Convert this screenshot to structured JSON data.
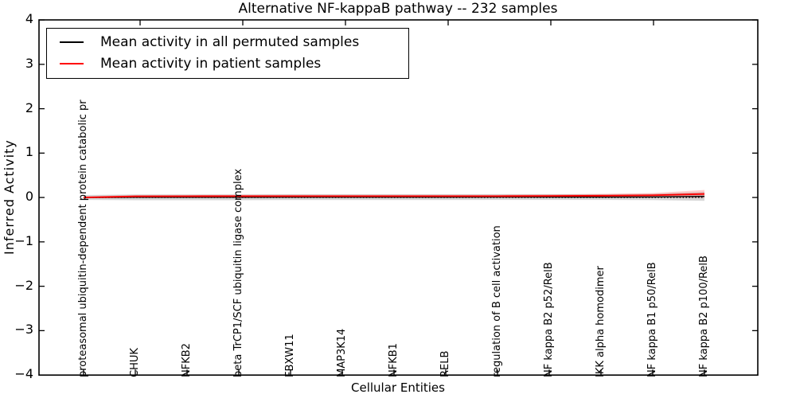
{
  "title": "Alternative NF-kappaB pathway -- 232 samples",
  "ylabel": "Inferred Activity",
  "xlabel": "Cellular Entities",
  "legend": {
    "items": [
      {
        "label": "Mean activity in all permuted samples",
        "color": "#000000"
      },
      {
        "label": "Mean activity in patient samples",
        "color": "#ff0000"
      }
    ],
    "position": "upper left"
  },
  "colors": {
    "axis": "#000000",
    "background": "#ffffff",
    "permuted_line": "#000000",
    "patient_line": "#ff0000",
    "permuted_band": "rgba(0,0,0,0.16)",
    "patient_band": "rgba(255,0,0,0.18)"
  },
  "chart_data": {
    "type": "line",
    "title": "Alternative NF-kappaB pathway -- 232 samples",
    "xlabel": "Cellular Entities",
    "ylabel": "Inferred Activity",
    "ylim": [
      -4,
      4
    ],
    "grid": false,
    "legend_position": "upper left",
    "zero_line": {
      "value": 0,
      "style": "dotted",
      "color": "#000000"
    },
    "yticks": [
      {
        "label": "4",
        "value": 4
      },
      {
        "label": "3",
        "value": 3
      },
      {
        "label": "2",
        "value": 2
      },
      {
        "label": "1",
        "value": 1
      },
      {
        "label": "0",
        "value": 0
      },
      {
        "label": "−1",
        "value": -1
      },
      {
        "label": "−2",
        "value": -2
      },
      {
        "label": "−3",
        "value": -3
      },
      {
        "label": "−4",
        "value": -4
      }
    ],
    "categories": [
      "proteasomal ubiquitin-dependent protein catabolic pr",
      "CHUK",
      "NFKB2",
      "beta TrCP1/SCF ubiquitin ligase complex",
      "FBXW11",
      "MAP3K14",
      "NFKB1",
      "RELB",
      "regulation of B cell activation",
      "NF kappa B2 p52/RelB",
      "IKK alpha homodimer",
      "NF kappa B1 p50/RelB",
      "NF kappa B2 p100/RelB"
    ],
    "series": [
      {
        "name": "Mean activity in all permuted samples",
        "color": "#000000",
        "values": [
          0.0,
          0.005,
          0.005,
          0.005,
          0.008,
          0.008,
          0.008,
          0.008,
          0.01,
          0.01,
          0.01,
          0.012,
          0.025
        ],
        "band_halfwidth": [
          0.055,
          0.065,
          0.065,
          0.065,
          0.065,
          0.065,
          0.065,
          0.065,
          0.065,
          0.065,
          0.065,
          0.07,
          0.1
        ],
        "band_color": "rgba(0,0,0,0.16)"
      },
      {
        "name": "Mean activity in patient samples",
        "color": "#ff0000",
        "values": [
          0.0,
          0.025,
          0.028,
          0.03,
          0.03,
          0.03,
          0.03,
          0.03,
          0.03,
          0.035,
          0.04,
          0.05,
          0.08
        ],
        "band_halfwidth": [
          0.02,
          0.03,
          0.03,
          0.03,
          0.03,
          0.03,
          0.03,
          0.03,
          0.03,
          0.035,
          0.04,
          0.05,
          0.09
        ],
        "band_color": "rgba(255,0,0,0.18)"
      }
    ]
  }
}
